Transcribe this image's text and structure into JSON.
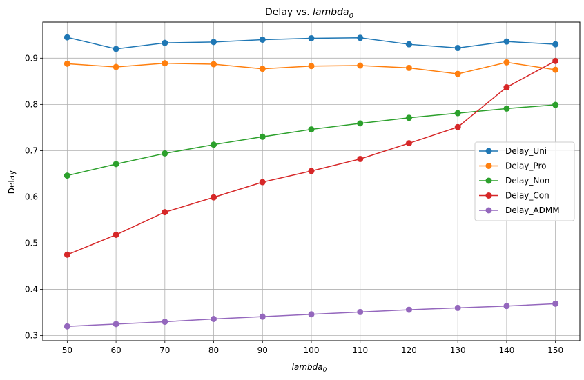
{
  "chart_data": {
    "type": "line",
    "title_prefix": "Delay vs. ",
    "title_math": "lambda",
    "title_sub": "0",
    "xlabel_math": "lambda",
    "xlabel_sub": "0",
    "ylabel": "Delay",
    "x": [
      50,
      60,
      70,
      80,
      90,
      100,
      110,
      120,
      130,
      140,
      150
    ],
    "xticks": [
      "50",
      "60",
      "70",
      "80",
      "90",
      "100",
      "110",
      "120",
      "130",
      "140",
      "150"
    ],
    "yticks": [
      "0.3",
      "0.4",
      "0.5",
      "0.6",
      "0.7",
      "0.8",
      "0.9"
    ],
    "yticks_values": [
      0.3,
      0.4,
      0.5,
      0.6,
      0.7,
      0.8,
      0.9
    ],
    "xlim": [
      45,
      155
    ],
    "ylim": [
      0.289,
      0.978
    ],
    "grid": true,
    "legend_position": "center-right",
    "series": [
      {
        "name": "Delay_Uni",
        "color": "#1f77b4",
        "values": [
          0.945,
          0.92,
          0.933,
          0.935,
          0.94,
          0.943,
          0.944,
          0.93,
          0.922,
          0.936,
          0.93
        ]
      },
      {
        "name": "Delay_Pro",
        "color": "#ff7f0e",
        "values": [
          0.888,
          0.881,
          0.889,
          0.887,
          0.877,
          0.883,
          0.884,
          0.879,
          0.866,
          0.891,
          0.875
        ]
      },
      {
        "name": "Delay_Non",
        "color": "#2ca02c",
        "values": [
          0.646,
          0.671,
          0.694,
          0.713,
          0.73,
          0.746,
          0.759,
          0.771,
          0.781,
          0.791,
          0.799
        ]
      },
      {
        "name": "Delay_Con",
        "color": "#d62728",
        "values": [
          0.475,
          0.518,
          0.567,
          0.599,
          0.632,
          0.656,
          0.682,
          0.716,
          0.751,
          0.837,
          0.894
        ]
      },
      {
        "name": "Delay_ADMM",
        "color": "#9467bd",
        "values": [
          0.32,
          0.325,
          0.33,
          0.336,
          0.341,
          0.346,
          0.351,
          0.356,
          0.36,
          0.364,
          0.369
        ]
      }
    ]
  }
}
